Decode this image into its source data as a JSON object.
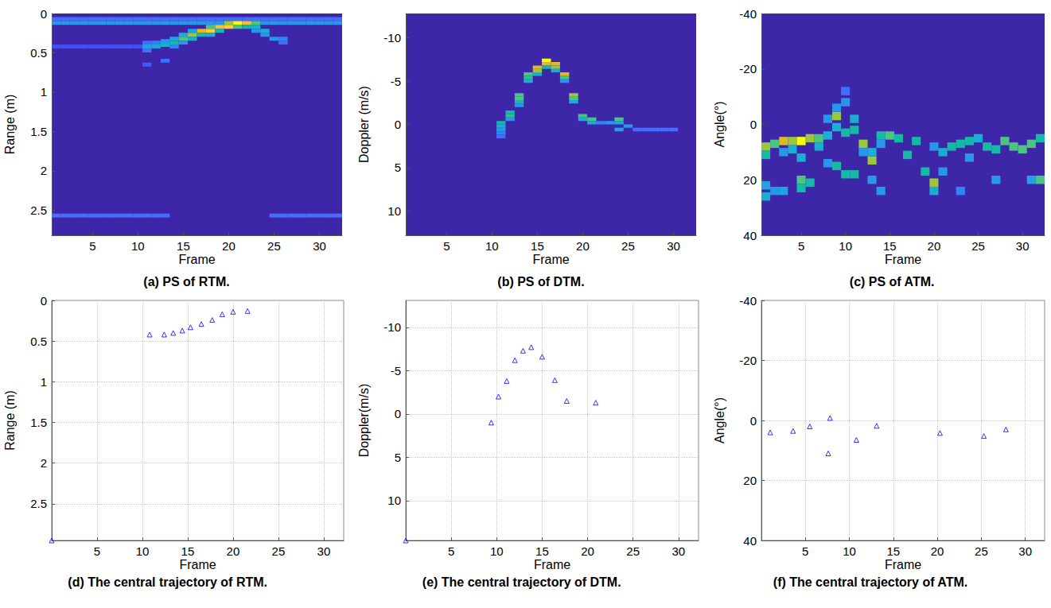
{
  "chart_data": [
    {
      "type": "heatmap",
      "title": "(a) PS of RTM.",
      "x_label": "Frame",
      "y_label": "Range (m)",
      "xlim": [
        0.5,
        32.5
      ],
      "xticks": [
        5,
        10,
        15,
        20,
        25,
        30
      ],
      "ylim": [
        2.82,
        0
      ],
      "yticks": [
        0,
        0.5,
        1,
        1.5,
        2,
        2.5
      ],
      "grid": false,
      "cell_width": 1,
      "cell_height": 0.05,
      "color_range": [
        0,
        1
      ],
      "cells": [
        [
          1,
          0.07,
          0.2
        ],
        [
          2,
          0.07,
          0.2
        ],
        [
          3,
          0.07,
          0.2
        ],
        [
          4,
          0.07,
          0.2
        ],
        [
          5,
          0.07,
          0.2
        ],
        [
          6,
          0.07,
          0.2
        ],
        [
          7,
          0.07,
          0.2
        ],
        [
          8,
          0.07,
          0.2
        ],
        [
          9,
          0.07,
          0.2
        ],
        [
          10,
          0.07,
          0.2
        ],
        [
          11,
          0.07,
          0.2
        ],
        [
          12,
          0.07,
          0.2
        ],
        [
          13,
          0.07,
          0.2
        ],
        [
          14,
          0.07,
          0.2
        ],
        [
          15,
          0.07,
          0.2
        ],
        [
          16,
          0.07,
          0.2
        ],
        [
          17,
          0.07,
          0.2
        ],
        [
          18,
          0.07,
          0.2
        ],
        [
          19,
          0.07,
          0.2
        ],
        [
          20,
          0.07,
          0.2
        ],
        [
          21,
          0.07,
          0.2
        ],
        [
          22,
          0.07,
          0.2
        ],
        [
          23,
          0.07,
          0.2
        ],
        [
          24,
          0.07,
          0.2
        ],
        [
          25,
          0.07,
          0.2
        ],
        [
          26,
          0.07,
          0.2
        ],
        [
          27,
          0.07,
          0.2
        ],
        [
          28,
          0.07,
          0.2
        ],
        [
          29,
          0.07,
          0.2
        ],
        [
          30,
          0.07,
          0.2
        ],
        [
          31,
          0.07,
          0.2
        ],
        [
          32,
          0.07,
          0.2
        ],
        [
          1,
          0.12,
          0.3
        ],
        [
          2,
          0.12,
          0.3
        ],
        [
          3,
          0.12,
          0.3
        ],
        [
          4,
          0.12,
          0.3
        ],
        [
          5,
          0.12,
          0.3
        ],
        [
          6,
          0.12,
          0.3
        ],
        [
          7,
          0.12,
          0.3
        ],
        [
          8,
          0.12,
          0.3
        ],
        [
          9,
          0.12,
          0.3
        ],
        [
          10,
          0.12,
          0.3
        ],
        [
          11,
          0.12,
          0.3
        ],
        [
          12,
          0.12,
          0.3
        ],
        [
          13,
          0.12,
          0.3
        ],
        [
          14,
          0.12,
          0.3
        ],
        [
          15,
          0.12,
          0.3
        ],
        [
          16,
          0.12,
          0.3
        ],
        [
          17,
          0.12,
          0.3
        ],
        [
          18,
          0.12,
          0.3
        ],
        [
          19,
          0.12,
          0.3
        ],
        [
          24,
          0.12,
          0.3
        ],
        [
          25,
          0.12,
          0.3
        ],
        [
          26,
          0.12,
          0.3
        ],
        [
          27,
          0.12,
          0.3
        ],
        [
          28,
          0.12,
          0.3
        ],
        [
          29,
          0.12,
          0.3
        ],
        [
          30,
          0.12,
          0.3
        ],
        [
          31,
          0.12,
          0.3
        ],
        [
          32,
          0.12,
          0.3
        ],
        [
          1,
          2.57,
          0.2
        ],
        [
          2,
          2.57,
          0.2
        ],
        [
          3,
          2.57,
          0.2
        ],
        [
          4,
          2.57,
          0.2
        ],
        [
          5,
          2.57,
          0.2
        ],
        [
          6,
          2.57,
          0.2
        ],
        [
          7,
          2.57,
          0.2
        ],
        [
          8,
          2.57,
          0.2
        ],
        [
          9,
          2.57,
          0.2
        ],
        [
          10,
          2.57,
          0.2
        ],
        [
          11,
          2.57,
          0.2
        ],
        [
          12,
          2.57,
          0.2
        ],
        [
          13,
          2.57,
          0.2
        ],
        [
          25,
          2.57,
          0.2
        ],
        [
          26,
          2.57,
          0.2
        ],
        [
          27,
          2.57,
          0.2
        ],
        [
          28,
          2.57,
          0.2
        ],
        [
          29,
          2.57,
          0.2
        ],
        [
          30,
          2.57,
          0.2
        ],
        [
          31,
          2.57,
          0.2
        ],
        [
          32,
          2.57,
          0.2
        ],
        [
          1,
          0.42,
          0.12
        ],
        [
          2,
          0.42,
          0.12
        ],
        [
          3,
          0.42,
          0.12
        ],
        [
          4,
          0.42,
          0.12
        ],
        [
          5,
          0.42,
          0.12
        ],
        [
          6,
          0.42,
          0.12
        ],
        [
          7,
          0.42,
          0.12
        ],
        [
          8,
          0.42,
          0.12
        ],
        [
          9,
          0.42,
          0.12
        ],
        [
          10,
          0.42,
          0.12
        ],
        [
          11,
          0.42,
          0.35
        ],
        [
          11,
          0.37,
          0.2
        ],
        [
          11,
          0.47,
          0.2
        ],
        [
          11,
          0.65,
          0.15
        ],
        [
          12,
          0.42,
          0.35
        ],
        [
          12,
          0.37,
          0.25
        ],
        [
          13,
          0.4,
          0.4
        ],
        [
          13,
          0.35,
          0.3
        ],
        [
          13,
          0.6,
          0.2
        ],
        [
          14,
          0.37,
          0.5
        ],
        [
          14,
          0.32,
          0.35
        ],
        [
          14,
          0.42,
          0.25
        ],
        [
          15,
          0.32,
          0.6
        ],
        [
          15,
          0.27,
          0.4
        ],
        [
          15,
          0.37,
          0.3
        ],
        [
          16,
          0.27,
          0.7
        ],
        [
          16,
          0.32,
          0.45
        ],
        [
          16,
          0.22,
          0.35
        ],
        [
          17,
          0.22,
          0.8
        ],
        [
          17,
          0.27,
          0.5
        ],
        [
          18,
          0.22,
          0.9
        ],
        [
          18,
          0.17,
          0.6
        ],
        [
          18,
          0.27,
          0.4
        ],
        [
          19,
          0.17,
          0.85
        ],
        [
          19,
          0.22,
          0.5
        ],
        [
          20,
          0.17,
          0.9
        ],
        [
          20,
          0.12,
          0.7
        ],
        [
          21,
          0.12,
          1.0
        ],
        [
          21,
          0.17,
          0.6
        ],
        [
          22,
          0.12,
          0.85
        ],
        [
          22,
          0.17,
          0.5
        ],
        [
          23,
          0.12,
          0.6
        ],
        [
          23,
          0.17,
          0.45
        ],
        [
          23,
          0.22,
          0.3
        ],
        [
          24,
          0.22,
          0.4
        ],
        [
          24,
          0.27,
          0.3
        ],
        [
          25,
          0.32,
          0.3
        ],
        [
          26,
          0.32,
          0.25
        ],
        [
          26,
          0.37,
          0.2
        ]
      ]
    },
    {
      "type": "heatmap",
      "title": "(b) PS of DTM.",
      "x_label": "Frame",
      "y_label": "Doppler (m/s)",
      "xlim": [
        0.5,
        32.5
      ],
      "xticks": [
        5,
        10,
        15,
        20,
        25,
        30
      ],
      "ylim": [
        12.8,
        -12.8
      ],
      "yticks": [
        -10,
        -5,
        0,
        5,
        10
      ],
      "grid": false,
      "cell_width": 1,
      "cell_height": 0.4,
      "color_range": [
        0,
        1
      ],
      "cells": [
        [
          11,
          -0.2,
          0.5
        ],
        [
          11,
          0.2,
          0.4
        ],
        [
          11,
          0.6,
          0.3
        ],
        [
          11,
          1.0,
          0.25
        ],
        [
          11,
          1.4,
          0.2
        ],
        [
          12,
          -1.4,
          0.5
        ],
        [
          12,
          -1.0,
          0.55
        ],
        [
          12,
          -0.6,
          0.3
        ],
        [
          13,
          -3.4,
          0.6
        ],
        [
          13,
          -3.0,
          0.6
        ],
        [
          13,
          -2.6,
          0.5
        ],
        [
          13,
          -2.2,
          0.3
        ],
        [
          14,
          -5.8,
          0.6
        ],
        [
          14,
          -5.4,
          0.55
        ],
        [
          14,
          -5.0,
          0.4
        ],
        [
          15,
          -6.6,
          0.8
        ],
        [
          15,
          -6.2,
          0.7
        ],
        [
          15,
          -5.8,
          0.4
        ],
        [
          16,
          -7.4,
          1.0
        ],
        [
          16,
          -7.0,
          0.8
        ],
        [
          16,
          -6.6,
          0.5
        ],
        [
          17,
          -7.0,
          0.8
        ],
        [
          17,
          -6.6,
          0.7
        ],
        [
          17,
          -6.2,
          0.4
        ],
        [
          18,
          -5.8,
          0.8
        ],
        [
          18,
          -5.4,
          0.6
        ],
        [
          18,
          -5.0,
          0.3
        ],
        [
          19,
          -3.4,
          0.7
        ],
        [
          19,
          -3.0,
          0.6
        ],
        [
          19,
          -2.6,
          0.4
        ],
        [
          20,
          -1.0,
          0.6
        ],
        [
          20,
          -0.6,
          0.4
        ],
        [
          21,
          -0.6,
          0.6
        ],
        [
          21,
          -0.2,
          0.4
        ],
        [
          22,
          -0.2,
          0.25
        ],
        [
          23,
          -0.2,
          0.3
        ],
        [
          24,
          -0.6,
          0.6
        ],
        [
          24,
          -0.2,
          0.4
        ],
        [
          24,
          0.6,
          0.35
        ],
        [
          25,
          0.2,
          0.3
        ],
        [
          26,
          0.6,
          0.2
        ],
        [
          27,
          0.6,
          0.2
        ],
        [
          28,
          0.6,
          0.2
        ],
        [
          29,
          0.6,
          0.2
        ],
        [
          30,
          0.6,
          0.2
        ]
      ]
    },
    {
      "type": "heatmap",
      "title": "(c) PS of ATM.",
      "x_label": "Frame",
      "y_label": "Angle(°)",
      "xlim": [
        0.5,
        32.5
      ],
      "xticks": [
        5,
        10,
        15,
        20,
        25,
        30
      ],
      "ylim": [
        40,
        -40
      ],
      "yticks": [
        -40,
        -20,
        0,
        20,
        40
      ],
      "grid": false,
      "cell_width": 1,
      "cell_height": 3,
      "color_range": [
        0,
        1
      ],
      "cells": [
        [
          1,
          8,
          0.7
        ],
        [
          1,
          11,
          0.5
        ],
        [
          1,
          22,
          0.35
        ],
        [
          1,
          26,
          0.4
        ],
        [
          2,
          7,
          0.6
        ],
        [
          2,
          24,
          0.3
        ],
        [
          3,
          6,
          0.8
        ],
        [
          3,
          10,
          0.3
        ],
        [
          3,
          24,
          0.35
        ],
        [
          4,
          6,
          0.7
        ],
        [
          4,
          9,
          0.4
        ],
        [
          5,
          6,
          1.0
        ],
        [
          5,
          12,
          0.4
        ],
        [
          5,
          20,
          0.6
        ],
        [
          5,
          23,
          0.5
        ],
        [
          6,
          5,
          0.7
        ],
        [
          6,
          21,
          0.5
        ],
        [
          7,
          5,
          0.6
        ],
        [
          7,
          8,
          0.4
        ],
        [
          8,
          4,
          0.4
        ],
        [
          8,
          -2,
          0.3
        ],
        [
          8,
          14,
          0.3
        ],
        [
          9,
          -3,
          0.7
        ],
        [
          9,
          1,
          0.4
        ],
        [
          9,
          15,
          0.5
        ],
        [
          9,
          -6,
          0.3
        ],
        [
          10,
          3,
          0.5
        ],
        [
          10,
          18,
          0.5
        ],
        [
          10,
          -8,
          0.3
        ],
        [
          10,
          -12,
          0.2
        ],
        [
          11,
          2,
          0.5
        ],
        [
          11,
          18,
          0.5
        ],
        [
          11,
          -2,
          0.4
        ],
        [
          12,
          7,
          0.7
        ],
        [
          12,
          10,
          0.3
        ],
        [
          13,
          13,
          0.7
        ],
        [
          13,
          10,
          0.4
        ],
        [
          13,
          20,
          0.3
        ],
        [
          14,
          4,
          0.5
        ],
        [
          14,
          7,
          0.3
        ],
        [
          14,
          24,
          0.3
        ],
        [
          15,
          4,
          0.6
        ],
        [
          16,
          5,
          0.5
        ],
        [
          17,
          11,
          0.5
        ],
        [
          18,
          6,
          0.5
        ],
        [
          19,
          17,
          0.5
        ],
        [
          20,
          21,
          0.7
        ],
        [
          20,
          24,
          0.4
        ],
        [
          20,
          8,
          0.3
        ],
        [
          21,
          10,
          0.4
        ],
        [
          21,
          17,
          0.3
        ],
        [
          22,
          8,
          0.5
        ],
        [
          23,
          7,
          0.5
        ],
        [
          23,
          24,
          0.25
        ],
        [
          24,
          6,
          0.5
        ],
        [
          24,
          12,
          0.3
        ],
        [
          25,
          5,
          0.4
        ],
        [
          26,
          8,
          0.5
        ],
        [
          27,
          9,
          0.5
        ],
        [
          27,
          20,
          0.3
        ],
        [
          28,
          6,
          0.6
        ],
        [
          29,
          8,
          0.6
        ],
        [
          30,
          9,
          0.6
        ],
        [
          31,
          7,
          0.6
        ],
        [
          31,
          20,
          0.35
        ],
        [
          32,
          5,
          0.5
        ],
        [
          32,
          20,
          0.6
        ]
      ]
    },
    {
      "type": "scatter",
      "title": "(d) The central trajectory of RTM.",
      "x_label": "Frame",
      "y_label": "Range (m)",
      "xlim": [
        0,
        32.2
      ],
      "xticks": [
        5,
        10,
        15,
        20,
        25,
        30
      ],
      "ylim": [
        2.95,
        0
      ],
      "yticks": [
        0,
        0.5,
        1,
        1.5,
        2,
        2.5
      ],
      "grid": true,
      "color": "#0000ff",
      "marker": "triangle",
      "x": [
        0,
        10.8,
        12.4,
        13.4,
        14.4,
        15.3,
        16.5,
        17.7,
        18.8,
        20,
        21.6
      ],
      "values": [
        2.95,
        0.42,
        0.42,
        0.4,
        0.37,
        0.33,
        0.29,
        0.24,
        0.17,
        0.14,
        0.13
      ]
    },
    {
      "type": "scatter",
      "title": "(e) The central trajectory of DTM.",
      "x_label": "Frame",
      "y_label": "Doppler(m/s)",
      "xlim": [
        0,
        32.2
      ],
      "xticks": [
        5,
        10,
        15,
        20,
        25,
        30
      ],
      "ylim": [
        14.6,
        -13.1
      ],
      "yticks": [
        -10,
        -5,
        0,
        5,
        10
      ],
      "grid": true,
      "color": "#0000ff",
      "marker": "triangle",
      "x": [
        0,
        9.4,
        10.2,
        11.1,
        12,
        12.9,
        13.8,
        15,
        16.4,
        17.7,
        20.9
      ],
      "values": [
        14.6,
        1.0,
        -2.0,
        -3.8,
        -6.2,
        -7.3,
        -7.7,
        -6.6,
        -3.9,
        -1.5,
        -1.3
      ]
    },
    {
      "type": "scatter",
      "title": "(f) The central trajectory of ATM.",
      "x_label": "Frame",
      "y_label": "Angle(°)",
      "xlim": [
        0,
        32.2
      ],
      "xticks": [
        5,
        10,
        15,
        20,
        25,
        30
      ],
      "ylim": [
        40,
        -40
      ],
      "yticks": [
        -40,
        -20,
        0,
        20,
        40
      ],
      "grid": true,
      "color": "#0000ff",
      "marker": "triangle",
      "x": [
        1,
        3.6,
        5.5,
        7.6,
        7.8,
        10.8,
        13.1,
        20.3,
        25.3,
        27.8
      ],
      "values": [
        4,
        3.5,
        2,
        11,
        -0.8,
        6.5,
        1.8,
        4.2,
        5.2,
        3
      ]
    }
  ]
}
